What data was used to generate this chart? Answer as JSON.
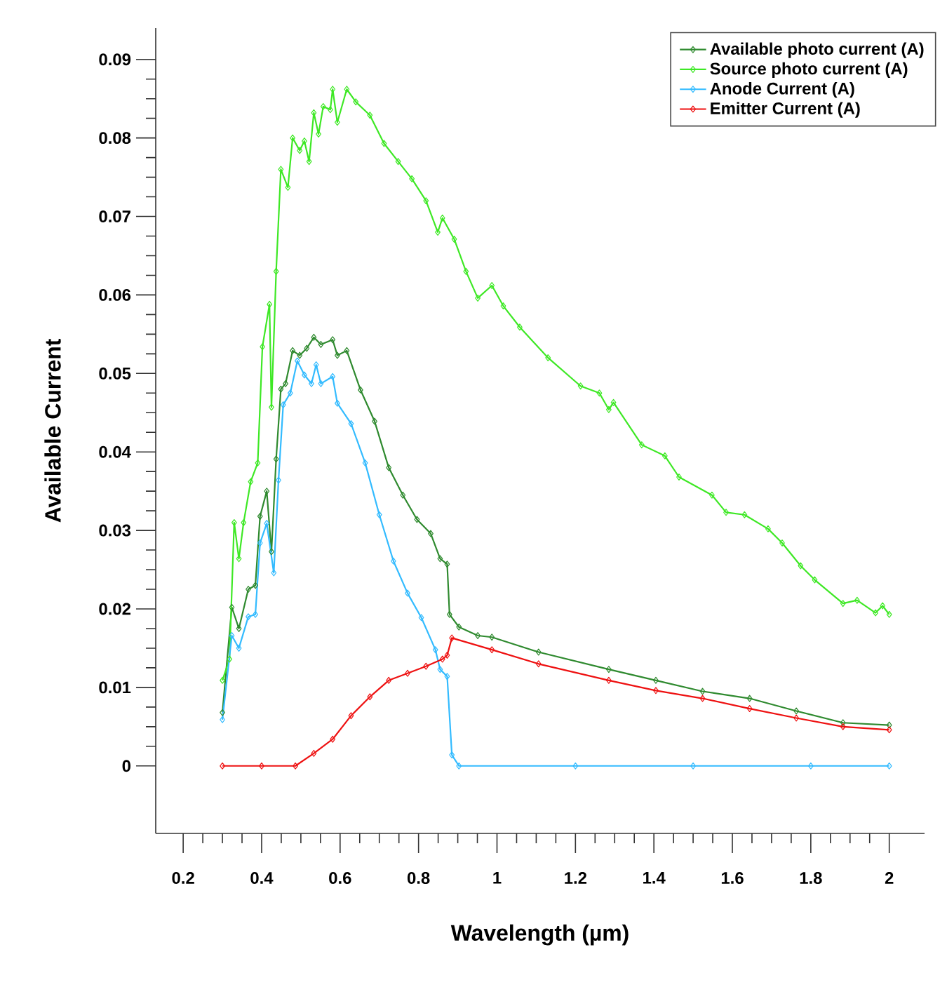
{
  "chart_data": {
    "type": "line",
    "xlabel": "Wavelength (µm)",
    "ylabel": "Available Current",
    "xlim": [
      0.13,
      2.09
    ],
    "ylim": [
      -0.0086,
      0.094
    ],
    "xticks": [
      0.2,
      0.4,
      0.6,
      0.8,
      1,
      1.2,
      1.4,
      1.6,
      1.8,
      2
    ],
    "yticks": [
      0,
      0.01,
      0.02,
      0.03,
      0.04,
      0.05,
      0.06,
      0.07,
      0.08,
      0.09
    ],
    "legend": "top right",
    "marker": "diamond",
    "line_style": "solid",
    "grid": false,
    "series": [
      {
        "name": "Available photo current (A)",
        "color": "#2f8a2f",
        "x": [
          0.3,
          0.324,
          0.342,
          0.366,
          0.384,
          0.396,
          0.413,
          0.425,
          0.437,
          0.449,
          0.461,
          0.479,
          0.497,
          0.515,
          0.533,
          0.551,
          0.581,
          0.593,
          0.617,
          0.652,
          0.688,
          0.724,
          0.76,
          0.796,
          0.831,
          0.855,
          0.873,
          0.879,
          0.903,
          0.951,
          0.987,
          1.106,
          1.285,
          1.405,
          1.524,
          1.644,
          1.763,
          1.882,
          2.0
        ],
        "values": [
          0.0068,
          0.0202,
          0.0175,
          0.0225,
          0.023,
          0.0318,
          0.035,
          0.0273,
          0.0391,
          0.048,
          0.0487,
          0.0529,
          0.0523,
          0.0532,
          0.0546,
          0.0537,
          0.0543,
          0.0523,
          0.0529,
          0.0479,
          0.0439,
          0.038,
          0.0345,
          0.0314,
          0.0296,
          0.0264,
          0.0257,
          0.0193,
          0.0177,
          0.0166,
          0.0164,
          0.0145,
          0.0123,
          0.0109,
          0.0095,
          0.0086,
          0.007,
          0.0055,
          0.0052
        ]
      },
      {
        "name": "Source photo current (A)",
        "color": "#3ee825",
        "x": [
          0.3,
          0.318,
          0.33,
          0.342,
          0.354,
          0.372,
          0.39,
          0.402,
          0.42,
          0.425,
          0.437,
          0.449,
          0.467,
          0.479,
          0.497,
          0.509,
          0.521,
          0.533,
          0.545,
          0.557,
          0.575,
          0.581,
          0.593,
          0.617,
          0.64,
          0.676,
          0.712,
          0.748,
          0.783,
          0.819,
          0.849,
          0.861,
          0.891,
          0.921,
          0.951,
          0.987,
          1.016,
          1.058,
          1.13,
          1.213,
          1.261,
          1.285,
          1.297,
          1.369,
          1.428,
          1.464,
          1.548,
          1.584,
          1.631,
          1.691,
          1.727,
          1.774,
          1.81,
          1.882,
          1.918,
          1.965,
          1.983,
          2.0
        ],
        "values": [
          0.0109,
          0.0136,
          0.031,
          0.0264,
          0.031,
          0.0362,
          0.0386,
          0.0534,
          0.0588,
          0.0457,
          0.063,
          0.076,
          0.0737,
          0.08,
          0.0784,
          0.0796,
          0.077,
          0.0832,
          0.0805,
          0.084,
          0.0836,
          0.0862,
          0.082,
          0.0862,
          0.0846,
          0.0829,
          0.0793,
          0.077,
          0.0748,
          0.072,
          0.068,
          0.0698,
          0.0671,
          0.063,
          0.0596,
          0.0612,
          0.0586,
          0.0559,
          0.052,
          0.0484,
          0.0475,
          0.0454,
          0.0463,
          0.0409,
          0.0395,
          0.0368,
          0.0345,
          0.0323,
          0.032,
          0.0302,
          0.0284,
          0.0255,
          0.0237,
          0.0207,
          0.0211,
          0.0195,
          0.0204,
          0.0193
        ]
      },
      {
        "name": "Anode Current (A)",
        "color": "#33bbff",
        "x": [
          0.3,
          0.324,
          0.342,
          0.366,
          0.384,
          0.396,
          0.413,
          0.431,
          0.443,
          0.455,
          0.473,
          0.491,
          0.509,
          0.527,
          0.539,
          0.551,
          0.581,
          0.593,
          0.628,
          0.664,
          0.7,
          0.736,
          0.772,
          0.807,
          0.843,
          0.855,
          0.873,
          0.885,
          0.903,
          1.2,
          1.5,
          1.8,
          2.0
        ],
        "values": [
          0.0059,
          0.0166,
          0.015,
          0.019,
          0.0193,
          0.0284,
          0.0309,
          0.0246,
          0.0364,
          0.046,
          0.0475,
          0.0516,
          0.0498,
          0.0487,
          0.0511,
          0.0487,
          0.0496,
          0.0462,
          0.0436,
          0.0386,
          0.032,
          0.0261,
          0.022,
          0.0189,
          0.0148,
          0.0123,
          0.0114,
          0.0014,
          0,
          0,
          0,
          0,
          0
        ]
      },
      {
        "name": "Emitter Current (A)",
        "color": "#ee1111",
        "x": [
          0.3,
          0.4,
          0.486,
          0.533,
          0.581,
          0.628,
          0.676,
          0.724,
          0.772,
          0.819,
          0.861,
          0.873,
          0.885,
          0.987,
          1.106,
          1.285,
          1.405,
          1.524,
          1.644,
          1.763,
          1.882,
          2.0
        ],
        "values": [
          0,
          0,
          0,
          0.0016,
          0.0034,
          0.0064,
          0.0088,
          0.0109,
          0.0118,
          0.0127,
          0.0136,
          0.0141,
          0.0163,
          0.0148,
          0.013,
          0.0109,
          0.0096,
          0.0086,
          0.0073,
          0.0061,
          0.005,
          0.0046
        ]
      }
    ]
  }
}
